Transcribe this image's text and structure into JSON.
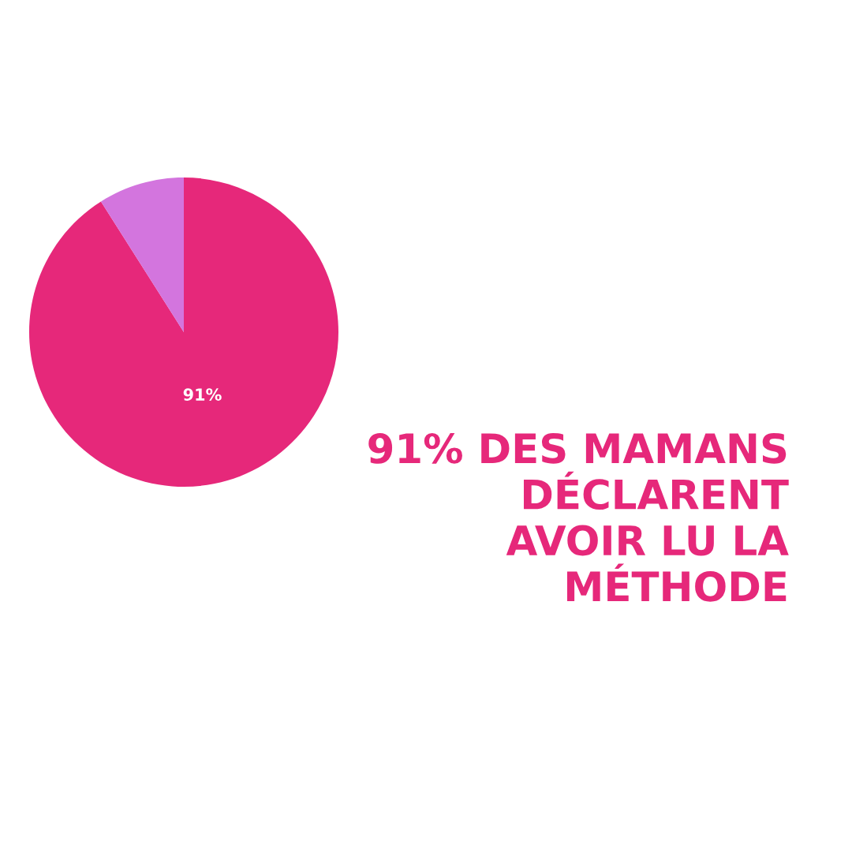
{
  "chart_data": {
    "type": "pie",
    "title": "91% DES MAMANS\nDÉCLARENT\nAVOIR LU LA\nMÉTHODE",
    "categories": [
      null,
      null
    ],
    "values": [
      91,
      9
    ],
    "colors": [
      "#e6287a",
      "#d375de"
    ],
    "value_labels": [
      "91%",
      null
    ]
  }
}
